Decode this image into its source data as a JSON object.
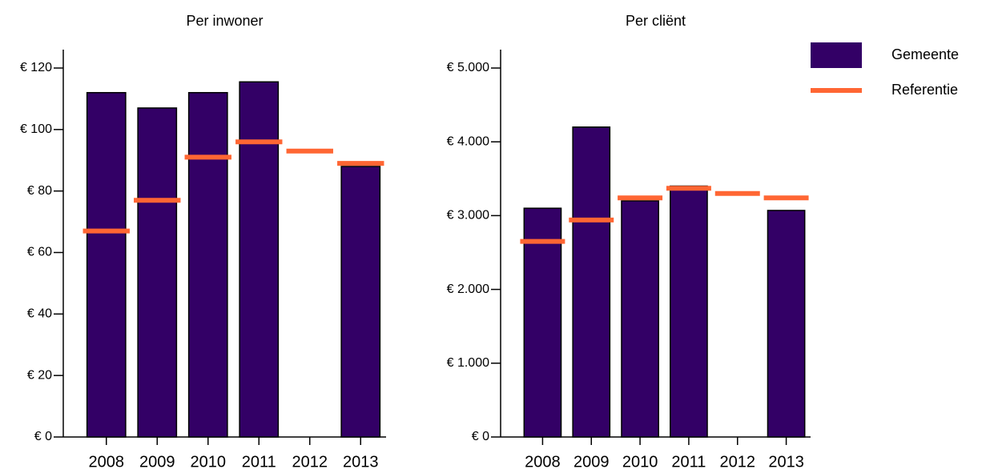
{
  "chart_data": [
    {
      "type": "bar",
      "title": "Per inwoner",
      "categories": [
        "2008",
        "2009",
        "2010",
        "2011",
        "2012",
        "2013"
      ],
      "series": [
        {
          "name": "Gemeente",
          "type": "bar",
          "color": "#330066",
          "values": [
            112,
            107,
            112,
            115.5,
            null,
            88
          ]
        },
        {
          "name": "Referentie",
          "type": "marker",
          "color": "#ff6633",
          "values": [
            67,
            77,
            91,
            96,
            93,
            89
          ]
        }
      ],
      "ylim": [
        0,
        120
      ],
      "yticks": [
        {
          "value": 0,
          "label": "€ 0"
        },
        {
          "value": 20,
          "label": "€ 20"
        },
        {
          "value": 40,
          "label": "€ 40"
        },
        {
          "value": 60,
          "label": "€ 60"
        },
        {
          "value": 80,
          "label": "€ 80"
        },
        {
          "value": 100,
          "label": "€ 100"
        },
        {
          "value": 120,
          "label": "€ 120"
        }
      ],
      "legend": "upper right"
    },
    {
      "type": "bar",
      "title": "Per cliënt",
      "categories": [
        "2008",
        "2009",
        "2010",
        "2011",
        "2012",
        "2013"
      ],
      "series": [
        {
          "type": "bar",
          "color": "#330066",
          "values": [
            3100,
            4200,
            3200,
            3400,
            null,
            3070
          ]
        },
        {
          "type": "marker",
          "color": "#ff6633",
          "values": [
            2650,
            2940,
            3240,
            3370,
            3300,
            3240
          ]
        }
      ],
      "ylim": [
        0,
        5000
      ],
      "yticks": [
        {
          "value": 0,
          "label": "€ 0"
        },
        {
          "value": 1000,
          "label": "€ 1.000"
        },
        {
          "value": 2000,
          "label": "€ 2.000"
        },
        {
          "value": 3000,
          "label": "€ 3.000"
        },
        {
          "value": 4000,
          "label": "€ 4.000"
        },
        {
          "value": 5000,
          "label": "€ 5.000"
        }
      ]
    }
  ]
}
